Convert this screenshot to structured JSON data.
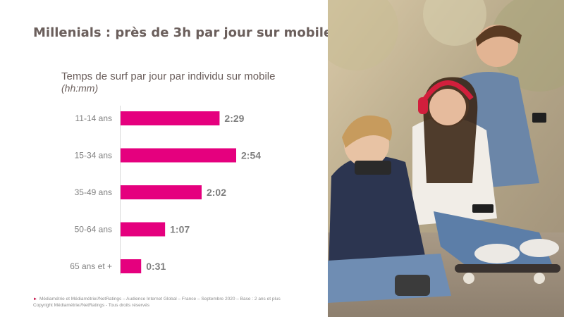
{
  "slide": {
    "title": "Millenials : près de 3h par jour sur mobile"
  },
  "chart_data": {
    "type": "bar",
    "orientation": "horizontal",
    "title": "Temps de surf par jour par individu sur mobile",
    "subtitle": "(hh:mm)",
    "categories": [
      "11-14 ans",
      "15-34 ans",
      "35-49 ans",
      "50-64 ans",
      "65 ans et +"
    ],
    "values_minutes": [
      149,
      174,
      122,
      67,
      31
    ],
    "value_labels": [
      "2:29",
      "2:54",
      "2:02",
      "1:07",
      "0:31"
    ],
    "bar_color": "#e5007e",
    "label_color": "#7f7f7f",
    "grid": false
  },
  "footer": {
    "source_line1": "Médiamétrie et Médiamétrie//NetRatings – Audience Internet Global – France – Septembre 2020 – Base : 2 ans et plus",
    "source_line2": "Copyright Médiamétrie//NetRatings - Tous droits réservés"
  },
  "photo": {
    "icon": "teenagers-with-smartphones-photo"
  }
}
